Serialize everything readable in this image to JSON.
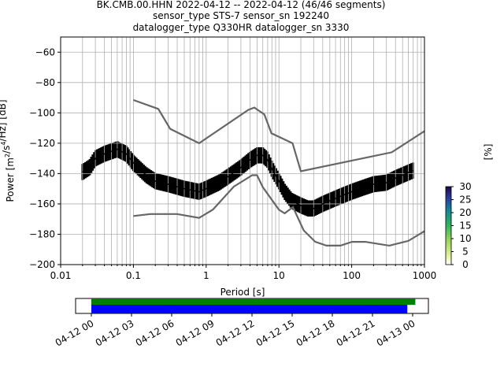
{
  "title_lines": [
    "BK.CMB.00.HHN   2022-04-12 -- 2022-04-12  (46/46 segments)",
    "sensor_type STS-7 sensor_sn 192240",
    "datalogger_type Q330HR datalogger_sn 3330"
  ],
  "chart_data": [
    {
      "type": "heatmap",
      "title": "BK.CMB.00.HHN   2022-04-12 -- 2022-04-12  (46/46 segments)",
      "xlabel": "Period [s]",
      "ylabel": "Power [m²/s⁴/Hz] [dB]",
      "ylabel_parts": {
        "prefix": "Power [",
        "base": "m",
        "exp1": "2",
        "mid": "/s",
        "exp2": "4",
        "suffix": "/Hz] [dB]"
      },
      "x_scale": "log",
      "xlim": [
        0.01,
        1000
      ],
      "ylim": [
        -200,
        -50
      ],
      "xticks": [
        0.01,
        0.1,
        1,
        10,
        100,
        1000
      ],
      "xtick_labels": [
        "0.01",
        "0.1",
        "1",
        "10",
        "100",
        "1000"
      ],
      "yticks": [
        -200,
        -180,
        -160,
        -140,
        -120,
        -100,
        -80,
        -60
      ],
      "ytick_labels": [
        "−200",
        "−180",
        "−160",
        "−140",
        "−120",
        "−100",
        "−80",
        "−60"
      ],
      "grid": true,
      "colorbar": {
        "label": "[%]",
        "range": [
          0,
          30
        ],
        "ticks": [
          0,
          5,
          10,
          15,
          20,
          25,
          30
        ],
        "tick_labels": [
          "0",
          "5",
          "10",
          "15",
          "20",
          "25",
          "30"
        ],
        "colormap": "pqlx"
      },
      "mean_curve": {
        "period": [
          0.02,
          0.025,
          0.03,
          0.04,
          0.06,
          0.08,
          0.1,
          0.15,
          0.2,
          0.3,
          0.5,
          0.8,
          1,
          1.5,
          2,
          3,
          4,
          5,
          6,
          7,
          8,
          10,
          12,
          15,
          20,
          25,
          30,
          40,
          50,
          70,
          100,
          150,
          200,
          300,
          400,
          500,
          700
        ],
        "power_db": [
          -139,
          -136,
          -130,
          -127,
          -124,
          -127,
          -133,
          -141,
          -145,
          -147,
          -150,
          -152,
          -150,
          -146,
          -142,
          -136,
          -131,
          -128,
          -128,
          -131,
          -137,
          -145,
          -152,
          -158,
          -161,
          -163,
          -163,
          -160,
          -158,
          -155,
          -152,
          -149,
          -147,
          -146,
          -143,
          -141,
          -138
        ]
      },
      "nhnm": {
        "period": [
          0.1,
          0.22,
          0.32,
          0.8,
          3.8,
          4.6,
          6.3,
          7.9,
          15.4,
          20,
          354.8,
          1000
        ],
        "power_db": [
          -91.5,
          -97.4,
          -110.5,
          -120,
          -98,
          -96.5,
          -101,
          -113.5,
          -120,
          -138.5,
          -126,
          -112
        ]
      },
      "nlnm": {
        "period": [
          0.1,
          0.17,
          0.4,
          0.8,
          1.24,
          2.4,
          4.3,
          5,
          6,
          10,
          12,
          15.6,
          21.9,
          31.6,
          45,
          70,
          101,
          154,
          328,
          600,
          1000
        ],
        "power_db": [
          -168,
          -166.7,
          -166.7,
          -169.2,
          -163.7,
          -148.6,
          -141.1,
          -141.1,
          -149,
          -163.8,
          -166.2,
          -162.1,
          -177.5,
          -185,
          -187.5,
          -187.5,
          -185,
          -185,
          -187.5,
          -184.4,
          -178
        ]
      }
    },
    {
      "type": "timeline",
      "x_tick_labels": [
        "04-12 00",
        "04-12 03",
        "04-12 06",
        "04-12 09",
        "04-12 12",
        "04-12 15",
        "04-12 18",
        "04-12 21",
        "04-13 00"
      ],
      "bars": [
        {
          "color": "#008000",
          "start_hour": 0.0,
          "end_hour": 24.2
        },
        {
          "color": "#0000ff",
          "start_hour": 0.0,
          "end_hour": 23.6
        }
      ]
    }
  ]
}
